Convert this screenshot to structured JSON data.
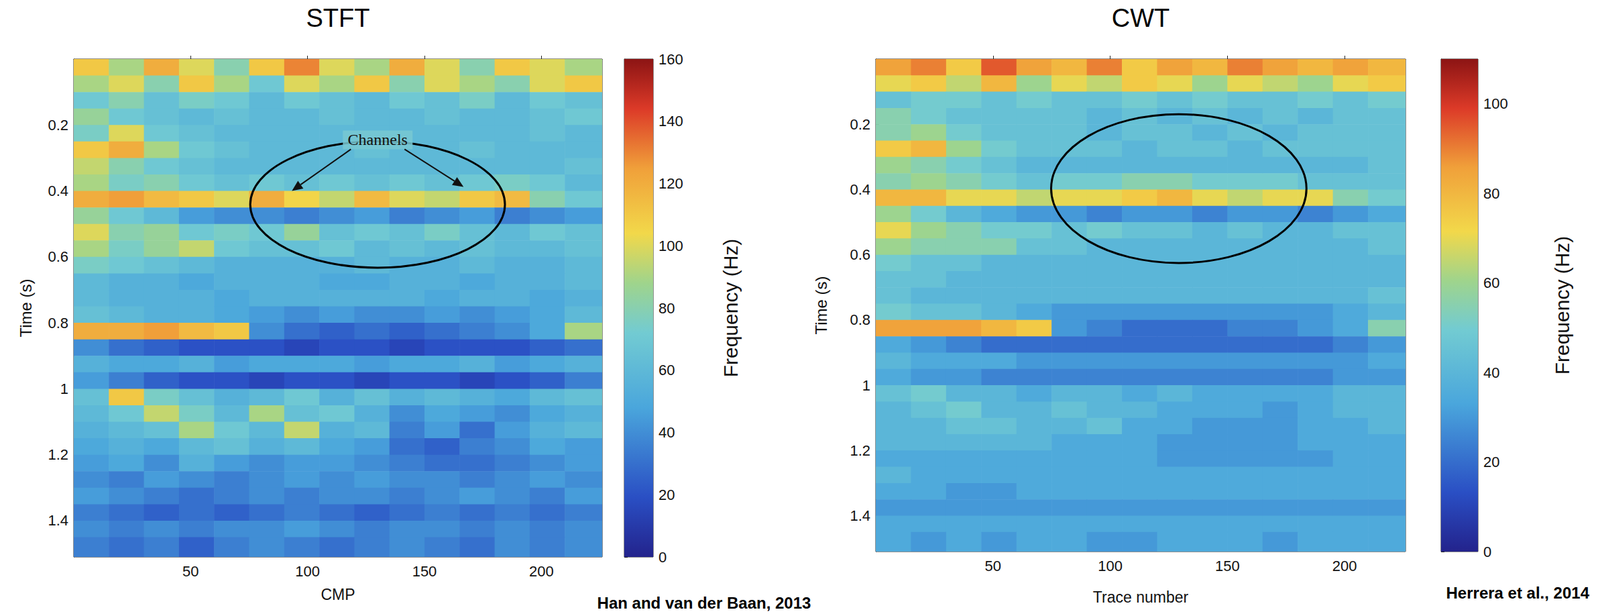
{
  "chart_data": [
    {
      "type": "heatmap",
      "title": "STFT",
      "x_label": "CMP",
      "y_label": "Time (s)",
      "xlim": [
        0,
        226
      ],
      "ylim": [
        0,
        1.51
      ],
      "xticks": [
        50,
        100,
        150,
        200
      ],
      "yticks": [
        0.2,
        0.4,
        0.6,
        0.8,
        1,
        1.2,
        1.4
      ],
      "source": "Han and van der Baan, 2013",
      "annotations": [
        {
          "text": "Channels",
          "x": 130,
          "y": 0.245
        }
      ],
      "colorbar": {
        "label": "Frequency (Hz)",
        "range": [
          0,
          160
        ],
        "ticks": [
          0,
          20,
          40,
          60,
          80,
          100,
          120,
          140,
          160
        ]
      },
      "cells": {
        "x_edges": [
          0,
          15,
          30,
          45,
          60,
          75,
          90,
          105,
          120,
          135,
          150,
          165,
          180,
          195,
          210,
          226
        ],
        "y_edges": [
          0,
          0.05,
          0.1,
          0.15,
          0.2,
          0.25,
          0.3,
          0.35,
          0.4,
          0.45,
          0.5,
          0.55,
          0.6,
          0.65,
          0.7,
          0.75,
          0.8,
          0.85,
          0.9,
          0.95,
          1,
          1.05,
          1.1,
          1.15,
          1.2,
          1.25,
          1.3,
          1.35,
          1.4,
          1.45,
          1.51
        ],
        "values": [
          [
            110,
            90,
            120,
            100,
            80,
            110,
            130,
            100,
            90,
            120,
            100,
            80,
            110,
            100,
            90
          ],
          [
            90,
            100,
            80,
            110,
            90,
            70,
            100,
            90,
            110,
            80,
            100,
            90,
            80,
            100,
            110
          ],
          [
            70,
            80,
            65,
            75,
            70,
            60,
            70,
            65,
            60,
            70,
            65,
            75,
            60,
            70,
            65
          ],
          [
            85,
            70,
            65,
            60,
            65,
            60,
            60,
            65,
            60,
            60,
            65,
            60,
            60,
            65,
            70
          ],
          [
            75,
            100,
            70,
            65,
            60,
            60,
            60,
            60,
            60,
            60,
            60,
            60,
            60,
            65,
            60
          ],
          [
            110,
            120,
            90,
            70,
            65,
            60,
            60,
            60,
            65,
            60,
            60,
            65,
            60,
            60,
            60
          ],
          [
            95,
            80,
            70,
            65,
            60,
            60,
            60,
            60,
            60,
            60,
            60,
            60,
            60,
            60,
            65
          ],
          [
            90,
            75,
            80,
            70,
            65,
            70,
            65,
            70,
            65,
            70,
            65,
            70,
            75,
            70,
            60
          ],
          [
            120,
            125,
            115,
            110,
            100,
            120,
            105,
            95,
            115,
            100,
            95,
            110,
            115,
            80,
            70
          ],
          [
            85,
            70,
            60,
            45,
            40,
            40,
            35,
            40,
            45,
            35,
            40,
            45,
            35,
            40,
            45
          ],
          [
            100,
            80,
            85,
            70,
            75,
            70,
            85,
            65,
            70,
            65,
            75,
            65,
            60,
            70,
            65
          ],
          [
            90,
            75,
            85,
            95,
            70,
            65,
            65,
            70,
            60,
            65,
            60,
            65,
            60,
            60,
            65
          ],
          [
            75,
            70,
            65,
            60,
            55,
            55,
            55,
            55,
            60,
            55,
            55,
            60,
            55,
            55,
            60
          ],
          [
            60,
            55,
            55,
            50,
            55,
            55,
            55,
            50,
            50,
            55,
            55,
            50,
            55,
            55,
            60
          ],
          [
            60,
            55,
            55,
            55,
            50,
            55,
            55,
            55,
            55,
            55,
            50,
            55,
            55,
            50,
            55
          ],
          [
            65,
            60,
            55,
            55,
            50,
            45,
            40,
            45,
            40,
            40,
            45,
            40,
            45,
            50,
            60
          ],
          [
            120,
            120,
            125,
            115,
            110,
            40,
            30,
            25,
            30,
            25,
            30,
            35,
            40,
            50,
            90
          ],
          [
            40,
            30,
            25,
            20,
            20,
            20,
            15,
            20,
            20,
            15,
            20,
            20,
            20,
            25,
            30
          ],
          [
            55,
            50,
            50,
            55,
            45,
            50,
            50,
            50,
            45,
            50,
            50,
            55,
            45,
            50,
            55
          ],
          [
            45,
            35,
            25,
            20,
            20,
            15,
            20,
            20,
            15,
            20,
            20,
            15,
            20,
            25,
            35
          ],
          [
            65,
            110,
            75,
            65,
            55,
            60,
            70,
            55,
            65,
            55,
            60,
            55,
            50,
            60,
            65
          ],
          [
            60,
            70,
            95,
            75,
            60,
            90,
            65,
            70,
            55,
            40,
            50,
            45,
            40,
            50,
            55
          ],
          [
            55,
            60,
            65,
            90,
            70,
            60,
            95,
            55,
            60,
            35,
            45,
            30,
            45,
            55,
            60
          ],
          [
            50,
            55,
            50,
            60,
            65,
            55,
            60,
            50,
            45,
            30,
            25,
            35,
            40,
            50,
            45
          ],
          [
            45,
            50,
            40,
            55,
            45,
            40,
            45,
            45,
            40,
            35,
            30,
            30,
            35,
            40,
            45
          ],
          [
            40,
            35,
            45,
            40,
            35,
            40,
            45,
            40,
            45,
            40,
            40,
            35,
            40,
            45,
            40
          ],
          [
            45,
            40,
            35,
            30,
            35,
            40,
            35,
            40,
            40,
            35,
            40,
            45,
            40,
            35,
            45
          ],
          [
            35,
            30,
            25,
            30,
            25,
            30,
            35,
            30,
            25,
            30,
            35,
            30,
            35,
            30,
            35
          ],
          [
            40,
            35,
            40,
            35,
            40,
            40,
            45,
            40,
            35,
            40,
            40,
            35,
            40,
            35,
            40
          ],
          [
            35,
            30,
            35,
            25,
            35,
            40,
            35,
            30,
            35,
            40,
            35,
            30,
            40,
            35,
            40
          ]
        ]
      }
    },
    {
      "type": "heatmap",
      "title": "CWT",
      "x_label": "Trace number",
      "y_label": "Time (s)",
      "xlim": [
        0,
        226
      ],
      "ylim": [
        0,
        1.51
      ],
      "xticks": [
        50,
        100,
        150,
        200
      ],
      "yticks": [
        0.2,
        0.4,
        0.6,
        0.8,
        1,
        1.2,
        1.4
      ],
      "source": "Herrera et al., 2014",
      "colorbar": {
        "label": "Frequency (Hz)",
        "range": [
          0,
          110
        ],
        "ticks": [
          0,
          20,
          40,
          60,
          80,
          100
        ]
      },
      "cells": {
        "x_edges": [
          0,
          15,
          30,
          45,
          60,
          75,
          90,
          105,
          120,
          135,
          150,
          165,
          180,
          195,
          210,
          226
        ],
        "y_edges": [
          0,
          0.05,
          0.1,
          0.15,
          0.2,
          0.25,
          0.3,
          0.35,
          0.4,
          0.45,
          0.5,
          0.55,
          0.6,
          0.65,
          0.7,
          0.75,
          0.8,
          0.85,
          0.9,
          0.95,
          1,
          1.05,
          1.1,
          1.15,
          1.2,
          1.25,
          1.3,
          1.35,
          1.4,
          1.45,
          1.51
        ],
        "values": [
          [
            85,
            90,
            75,
            95,
            85,
            80,
            90,
            75,
            85,
            80,
            90,
            85,
            80,
            85,
            80
          ],
          [
            70,
            75,
            65,
            80,
            60,
            70,
            65,
            75,
            70,
            60,
            70,
            65,
            60,
            70,
            75
          ],
          [
            45,
            50,
            50,
            45,
            50,
            45,
            45,
            50,
            45,
            50,
            45,
            45,
            50,
            45,
            50
          ],
          [
            55,
            50,
            45,
            45,
            45,
            45,
            40,
            45,
            40,
            45,
            40,
            45,
            40,
            45,
            45
          ],
          [
            55,
            60,
            50,
            45,
            45,
            45,
            40,
            45,
            45,
            40,
            45,
            40,
            45,
            45,
            45
          ],
          [
            75,
            80,
            60,
            50,
            45,
            45,
            45,
            40,
            45,
            45,
            40,
            45,
            45,
            45,
            45
          ],
          [
            60,
            55,
            50,
            45,
            40,
            40,
            40,
            40,
            40,
            40,
            40,
            40,
            40,
            40,
            45
          ],
          [
            55,
            60,
            55,
            50,
            45,
            50,
            50,
            55,
            55,
            50,
            50,
            50,
            45,
            45,
            45
          ],
          [
            80,
            80,
            70,
            70,
            65,
            70,
            70,
            75,
            80,
            70,
            65,
            70,
            70,
            55,
            50
          ],
          [
            60,
            50,
            40,
            35,
            30,
            30,
            25,
            30,
            30,
            25,
            30,
            30,
            25,
            30,
            35
          ],
          [
            70,
            60,
            55,
            50,
            50,
            45,
            50,
            45,
            45,
            40,
            45,
            40,
            40,
            45,
            45
          ],
          [
            60,
            55,
            55,
            55,
            45,
            45,
            40,
            40,
            40,
            40,
            40,
            40,
            40,
            40,
            45
          ],
          [
            50,
            45,
            45,
            40,
            40,
            40,
            40,
            40,
            40,
            40,
            40,
            40,
            40,
            40,
            40
          ],
          [
            45,
            45,
            40,
            40,
            40,
            40,
            40,
            40,
            40,
            40,
            40,
            40,
            40,
            40,
            40
          ],
          [
            45,
            40,
            40,
            40,
            40,
            40,
            40,
            40,
            40,
            40,
            40,
            40,
            40,
            40,
            45
          ],
          [
            50,
            45,
            45,
            40,
            35,
            30,
            30,
            30,
            30,
            30,
            30,
            30,
            30,
            35,
            40
          ],
          [
            85,
            85,
            85,
            80,
            75,
            30,
            25,
            20,
            20,
            20,
            25,
            25,
            30,
            35,
            55
          ],
          [
            35,
            30,
            25,
            20,
            20,
            20,
            20,
            20,
            20,
            20,
            20,
            20,
            20,
            25,
            30
          ],
          [
            40,
            35,
            35,
            35,
            30,
            30,
            30,
            30,
            30,
            30,
            30,
            30,
            30,
            30,
            35
          ],
          [
            35,
            30,
            30,
            25,
            25,
            25,
            25,
            25,
            25,
            25,
            25,
            25,
            25,
            30,
            30
          ],
          [
            45,
            50,
            40,
            40,
            35,
            40,
            40,
            35,
            40,
            35,
            35,
            35,
            35,
            40,
            40
          ],
          [
            40,
            45,
            50,
            40,
            40,
            45,
            40,
            40,
            35,
            35,
            35,
            30,
            35,
            40,
            40
          ],
          [
            40,
            40,
            45,
            45,
            40,
            40,
            45,
            35,
            35,
            30,
            30,
            30,
            35,
            35,
            40
          ],
          [
            40,
            40,
            40,
            40,
            40,
            35,
            35,
            35,
            30,
            30,
            30,
            30,
            35,
            35,
            35
          ],
          [
            35,
            35,
            35,
            35,
            35,
            35,
            35,
            35,
            30,
            30,
            30,
            30,
            30,
            35,
            35
          ],
          [
            40,
            35,
            35,
            35,
            35,
            35,
            35,
            35,
            35,
            35,
            35,
            35,
            35,
            35,
            35
          ],
          [
            35,
            35,
            30,
            30,
            35,
            35,
            35,
            35,
            35,
            35,
            35,
            35,
            35,
            35,
            35
          ],
          [
            30,
            30,
            30,
            30,
            30,
            30,
            30,
            30,
            30,
            30,
            30,
            30,
            30,
            30,
            30
          ],
          [
            35,
            35,
            35,
            35,
            35,
            35,
            35,
            35,
            35,
            35,
            35,
            35,
            35,
            35,
            35
          ],
          [
            35,
            30,
            35,
            30,
            35,
            35,
            30,
            30,
            35,
            35,
            35,
            30,
            35,
            35,
            35
          ]
        ]
      }
    }
  ]
}
